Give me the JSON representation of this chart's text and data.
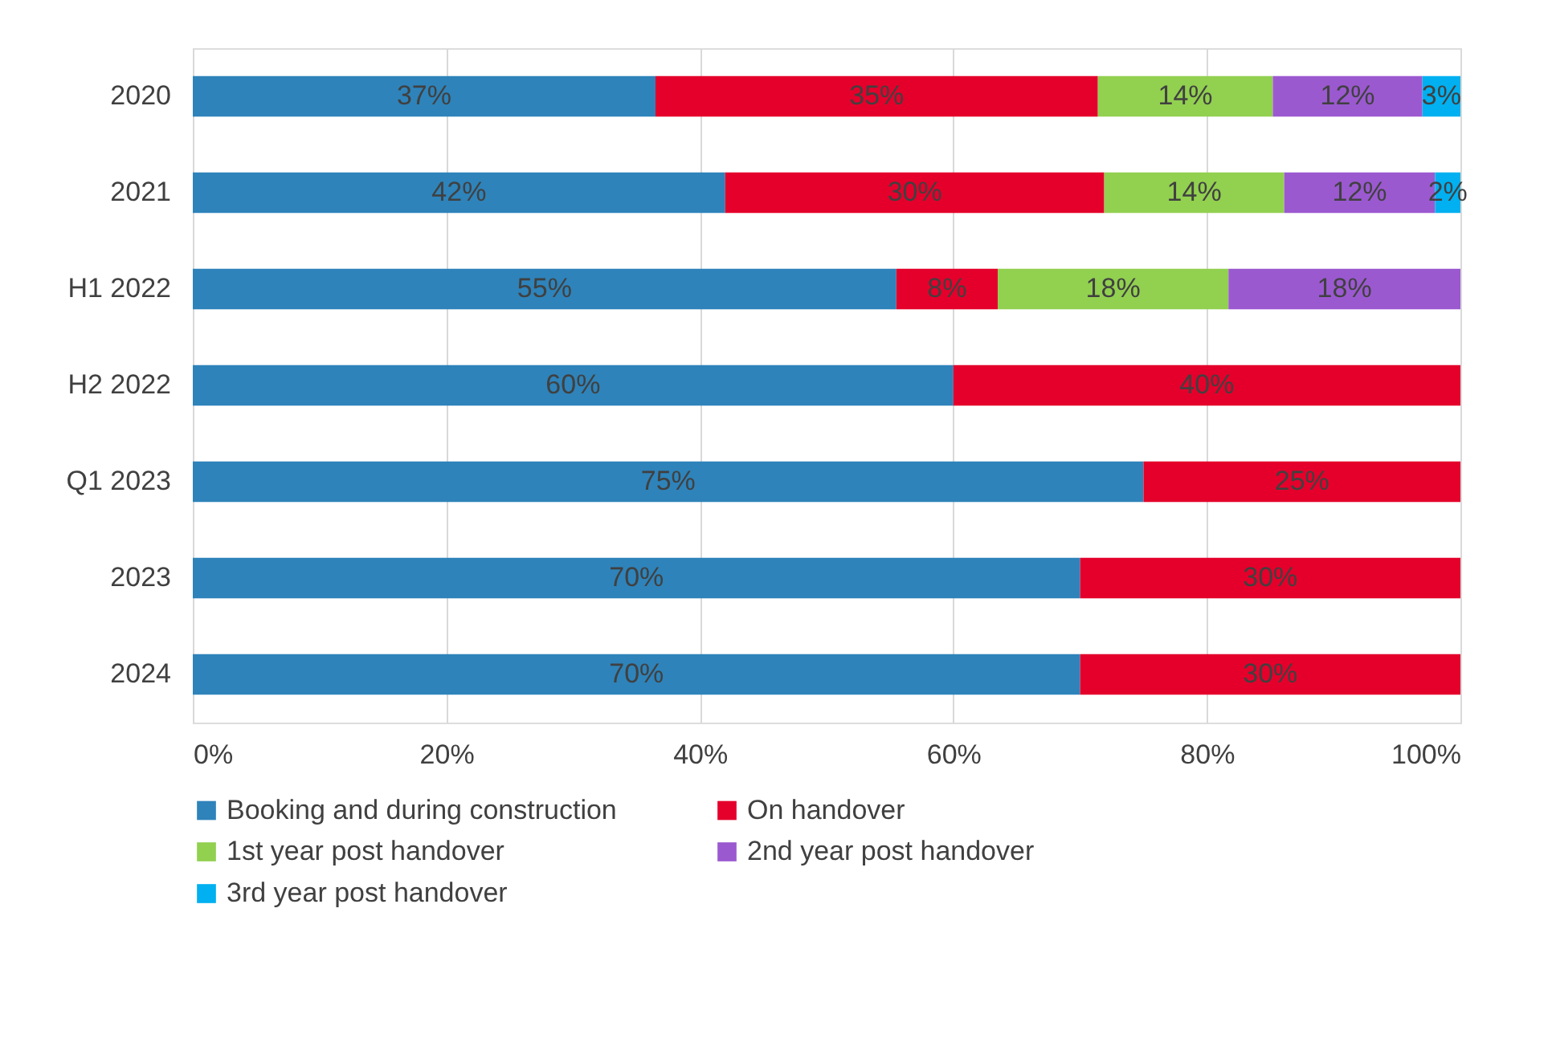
{
  "chart_data": {
    "type": "bar",
    "orientation": "horizontal",
    "stacked": true,
    "categories": [
      "2020",
      "2021",
      "H1 2022",
      "H2 2022",
      "Q1 2023",
      "2023",
      "2024"
    ],
    "series": [
      {
        "name": "Booking and during construction",
        "color": "#2e83ba",
        "values": [
          36.5,
          42.0,
          55.5,
          60,
          75,
          70,
          70
        ],
        "value_labels": [
          "37%",
          "42%",
          "55%",
          "60%",
          "75%",
          "70%",
          "70%"
        ]
      },
      {
        "name": "On handover",
        "color": "#e4002b",
        "values": [
          34.9,
          29.9,
          8.0,
          40,
          25,
          30,
          30
        ],
        "value_labels": [
          "35%",
          "30%",
          "8%",
          "40%",
          "25%",
          "30%",
          "30%"
        ]
      },
      {
        "name": "1st year post handover",
        "color": "#92d050",
        "values": [
          13.8,
          14.2,
          18.2,
          null,
          null,
          null,
          null
        ],
        "value_labels": [
          "14%",
          "14%",
          "18%",
          null,
          null,
          null,
          null
        ]
      },
      {
        "name": "2nd year post handover",
        "color": "#9b59d0",
        "values": [
          11.8,
          11.9,
          18.3,
          null,
          null,
          null,
          null
        ],
        "value_labels": [
          "12%",
          "12%",
          "18%",
          null,
          null,
          null,
          null
        ]
      },
      {
        "name": "3rd year post handover",
        "color": "#00b0f0",
        "values": [
          3.0,
          2.0,
          null,
          null,
          null,
          null,
          null
        ],
        "value_labels": [
          "3%",
          "2%",
          null,
          null,
          null,
          null,
          null
        ]
      }
    ],
    "xlim": [
      0,
      100
    ],
    "xticks": [
      {
        "value": 0,
        "label": "0%"
      },
      {
        "value": 20,
        "label": "20%"
      },
      {
        "value": 40,
        "label": "40%"
      },
      {
        "value": 60,
        "label": "60%"
      },
      {
        "value": 80,
        "label": "80%"
      },
      {
        "value": 100,
        "label": "100%"
      }
    ],
    "grid": "x",
    "legend": "bottom"
  }
}
